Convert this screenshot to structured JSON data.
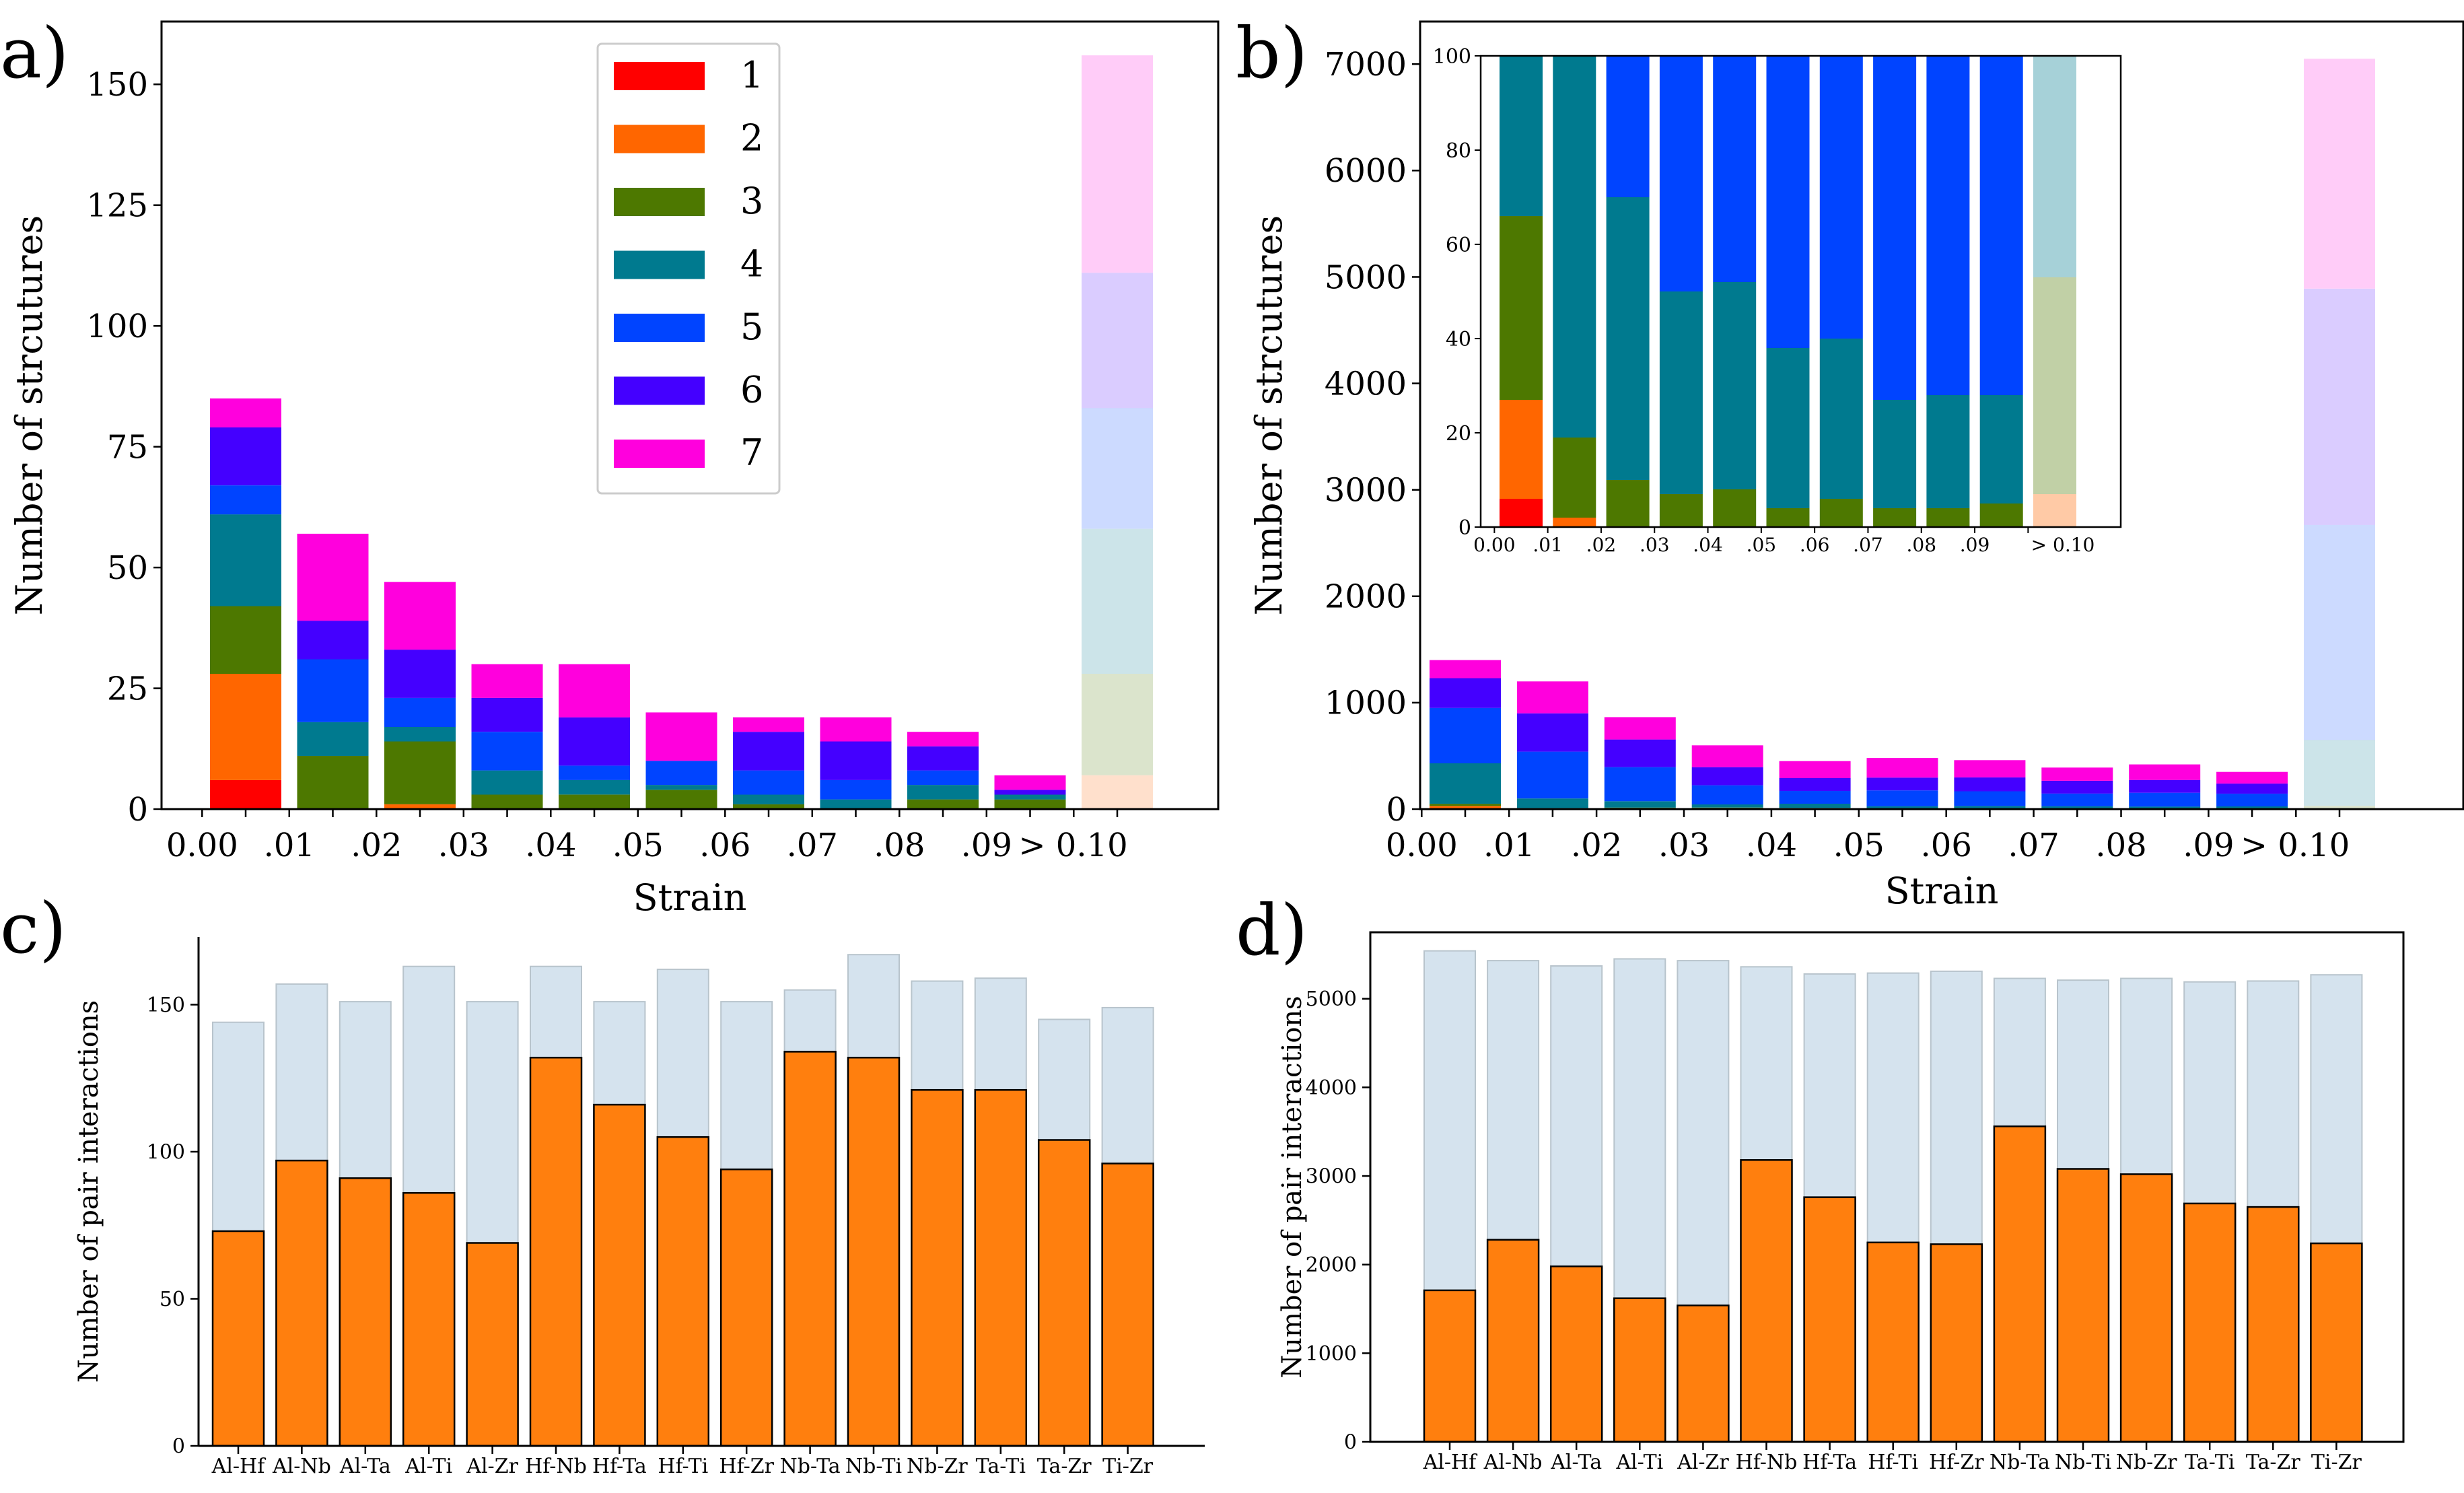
{
  "chart_data": [
    {
      "id": "a",
      "panel_label": "a)",
      "type": "bar",
      "stacked": true,
      "categories": [
        "0.00",
        ".01",
        ".02",
        ".03",
        ".04",
        ".05",
        ".06",
        ".07",
        ".08",
        ".09",
        "> 0.10"
      ],
      "xlabel": "Strain",
      "ylabel": "Number of strcutures",
      "ylim": [
        0,
        163
      ],
      "yticks": [
        0,
        25,
        50,
        75,
        100,
        125,
        150
      ],
      "faded_categories": [
        "> 0.10"
      ],
      "legend": {
        "position": "top-center",
        "entries": [
          "1",
          "2",
          "3",
          "4",
          "5",
          "6",
          "7"
        ]
      },
      "series": [
        {
          "name": "1",
          "color": "#ff0000",
          "values": [
            6,
            0,
            0,
            0,
            0,
            0,
            0,
            0,
            0,
            0,
            0
          ]
        },
        {
          "name": "2",
          "color": "#ff6600",
          "values": [
            22,
            0,
            1,
            0,
            0,
            0,
            0,
            0,
            0,
            0,
            7
          ]
        },
        {
          "name": "3",
          "color": "#4d7800",
          "values": [
            14,
            11,
            13,
            3,
            3,
            4,
            1,
            0,
            2,
            2,
            21
          ]
        },
        {
          "name": "4",
          "color": "#007a8f",
          "values": [
            19,
            7,
            3,
            5,
            3,
            1,
            2,
            2,
            3,
            1,
            30
          ]
        },
        {
          "name": "5",
          "color": "#0044ff",
          "values": [
            6,
            13,
            6,
            8,
            3,
            5,
            5,
            4,
            3,
            0,
            25
          ]
        },
        {
          "name": "6",
          "color": "#4400ff",
          "values": [
            12,
            8,
            10,
            7,
            10,
            0,
            8,
            8,
            5,
            1,
            28
          ]
        },
        {
          "name": "7",
          "color": "#ff00dd",
          "values": [
            6,
            18,
            14,
            7,
            11,
            10,
            3,
            5,
            3,
            3,
            45
          ]
        }
      ]
    },
    {
      "id": "b",
      "panel_label": "b)",
      "type": "bar",
      "stacked": true,
      "categories": [
        "0.00",
        ".01",
        ".02",
        ".03",
        ".04",
        ".05",
        ".06",
        ".07",
        ".08",
        ".09",
        "> 0.10"
      ],
      "xlabel": "Strain",
      "ylabel": "Number of strcutures",
      "ylim": [
        0,
        7400
      ],
      "yticks": [
        0,
        1000,
        2000,
        3000,
        4000,
        5000,
        6000,
        7000
      ],
      "faded_categories": [
        "> 0.10"
      ],
      "series": [
        {
          "name": "1",
          "color": "#ff0000",
          "values": [
            8,
            0,
            0,
            0,
            0,
            0,
            0,
            0,
            0,
            0,
            0
          ]
        },
        {
          "name": "2",
          "color": "#ff6600",
          "values": [
            22,
            4,
            0,
            0,
            0,
            0,
            0,
            0,
            0,
            0,
            0
          ]
        },
        {
          "name": "3",
          "color": "#4d7800",
          "values": [
            20,
            6,
            14,
            14,
            11,
            6,
            8,
            6,
            4,
            5,
            30
          ]
        },
        {
          "name": "4",
          "color": "#007a8f",
          "values": [
            380,
            90,
            60,
            30,
            40,
            20,
            20,
            20,
            20,
            20,
            620
          ]
        },
        {
          "name": "5",
          "color": "#0044ff",
          "values": [
            520,
            440,
            320,
            180,
            120,
            150,
            140,
            120,
            130,
            120,
            2020
          ]
        },
        {
          "name": "6",
          "color": "#4400ff",
          "values": [
            280,
            360,
            260,
            170,
            120,
            120,
            130,
            120,
            120,
            95,
            2220
          ]
        },
        {
          "name": "7",
          "color": "#ff00dd",
          "values": [
            170,
            300,
            210,
            205,
            160,
            184,
            162,
            124,
            146,
            110,
            2160
          ]
        }
      ],
      "inset": {
        "type": "bar",
        "stacked": true,
        "percent": true,
        "ylim": [
          0,
          100
        ],
        "yticks": [
          0,
          20,
          40,
          60,
          80,
          100
        ],
        "categories": [
          "0.00",
          ".01",
          ".02",
          ".03",
          ".04",
          ".05",
          ".06",
          ".07",
          ".08",
          ".09",
          "> 0.10"
        ],
        "faded_categories": [
          "> 0.10"
        ],
        "series": [
          {
            "name": "1",
            "color": "#ff0000",
            "values": [
              6,
              0,
              0,
              0,
              0,
              0,
              0,
              0,
              0,
              0,
              0
            ]
          },
          {
            "name": "2",
            "color": "#ff6600",
            "values": [
              21,
              2,
              0,
              0,
              0,
              0,
              0,
              0,
              0,
              0,
              7
            ]
          },
          {
            "name": "3",
            "color": "#4d7800",
            "values": [
              39,
              17,
              10,
              7,
              8,
              4,
              6,
              4,
              4,
              5,
              46
            ]
          },
          {
            "name": "4",
            "color": "#007a8f",
            "values": [
              34,
              81,
              60,
              43,
              44,
              34,
              34,
              23,
              24,
              23,
              47
            ]
          },
          {
            "name": "5",
            "color": "#0044ff",
            "values": [
              0,
              0,
              30,
              50,
              48,
              62,
              60,
              73,
              72,
              72,
              0
            ]
          }
        ]
      }
    },
    {
      "id": "c",
      "panel_label": "c)",
      "type": "bar",
      "categories": [
        "Al-Hf",
        "Al-Nb",
        "Al-Ta",
        "Al-Ti",
        "Al-Zr",
        "Hf-Nb",
        "Hf-Ta",
        "Hf-Ti",
        "Hf-Zr",
        "Nb-Ta",
        "Nb-Ti",
        "Nb-Zr",
        "Ta-Ti",
        "Ta-Zr",
        "Ti-Zr"
      ],
      "ylabel": "Number of pair interactions",
      "xlabel": "",
      "ylim": [
        0,
        173
      ],
      "yticks": [
        0,
        50,
        100,
        150
      ],
      "series": [
        {
          "name": "total",
          "color": "#d5e3ee",
          "values": [
            144,
            157,
            151,
            163,
            151,
            163,
            151,
            162,
            151,
            155,
            167,
            158,
            159,
            145,
            149
          ]
        },
        {
          "name": "subset",
          "color": "#ff7f0e",
          "values": [
            73,
            97,
            91,
            86,
            69,
            132,
            116,
            105,
            94,
            134,
            132,
            121,
            121,
            104,
            96
          ]
        }
      ]
    },
    {
      "id": "d",
      "panel_label": "d)",
      "type": "bar",
      "categories": [
        "Al-Hf",
        "Al-Nb",
        "Al-Ta",
        "Al-Ti",
        "Al-Zr",
        "Hf-Nb",
        "Hf-Ta",
        "Hf-Ti",
        "Hf-Zr",
        "Nb-Ta",
        "Nb-Ti",
        "Nb-Zr",
        "Ta-Ti",
        "Ta-Zr",
        "Ti-Zr"
      ],
      "ylabel": "Number of pair interactions",
      "xlabel": "",
      "ylim": [
        0,
        5750
      ],
      "yticks": [
        0,
        1000,
        2000,
        3000,
        4000,
        5000
      ],
      "series": [
        {
          "name": "total",
          "color": "#d5e3ee",
          "values": [
            5540,
            5430,
            5370,
            5450,
            5430,
            5360,
            5280,
            5290,
            5310,
            5230,
            5210,
            5230,
            5190,
            5200,
            5270
          ]
        },
        {
          "name": "subset",
          "color": "#ff7f0e",
          "values": [
            1710,
            2280,
            1980,
            1620,
            1540,
            3180,
            2760,
            2250,
            2230,
            3560,
            3080,
            3020,
            2690,
            2650,
            2240
          ]
        }
      ]
    }
  ]
}
